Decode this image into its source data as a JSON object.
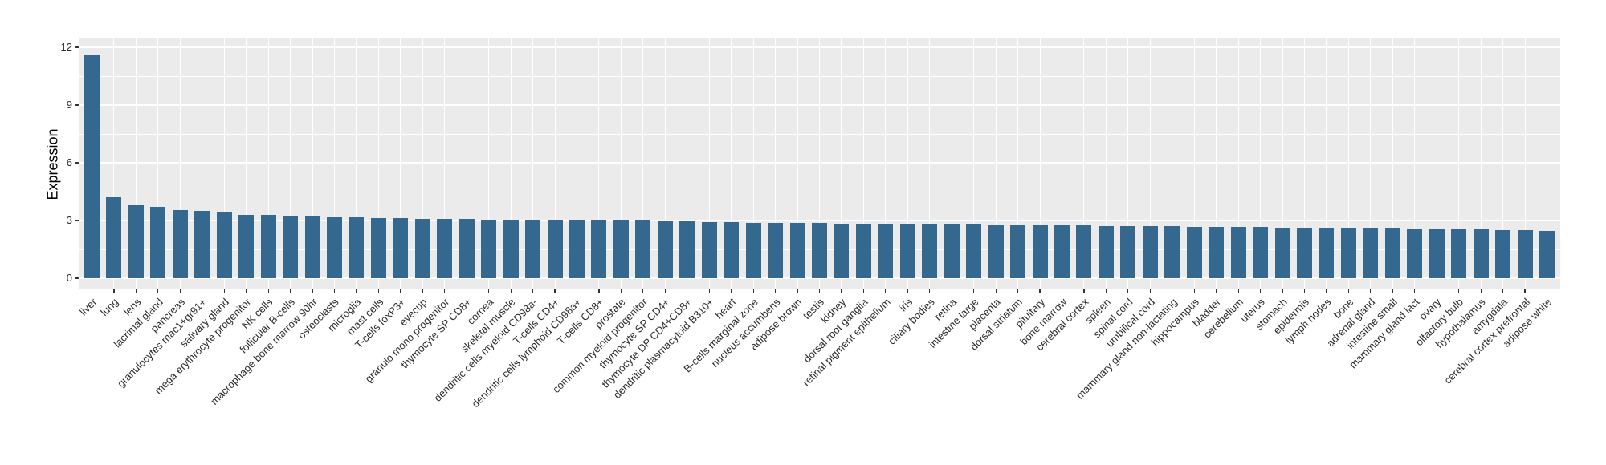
{
  "chart_data": {
    "type": "bar",
    "title": "",
    "xlabel": "",
    "ylabel": "Expression",
    "ylim": [
      0,
      12
    ],
    "yticks": [
      0,
      3,
      6,
      9,
      12
    ],
    "y_minor": [
      1.5,
      4.5,
      7.5,
      10.5
    ],
    "grid": true,
    "legend_position": "none",
    "bar_color": "#35688E",
    "panel_bg": "#EBEBEB",
    "grid_color": "#FFFFFF",
    "tick_color": "#333333",
    "label_rotation_deg": 45,
    "categories": [
      "liver",
      "lung",
      "lens",
      "lacrimal gland",
      "pancreas",
      "granulocytes mac1+gr91+",
      "salivary gland",
      "mega erythrocyte progenitor",
      "NK cells",
      "follicular B-cells",
      "macrophage bone marrow 90hr",
      "osteoclasts",
      "microglia",
      "mast cells",
      "T-cells foxP3+",
      "eyecup",
      "granulo mono progenitor",
      "thymocyte SP CD8+",
      "cornea",
      "skeletal muscle",
      "dendritic cells myeloid CD98a-",
      "T-cells CD4+",
      "dendritic cells lymphoid CD98a+",
      "T-cells CD8+",
      "prostate",
      "common myeloid progenitor",
      "thymocyte SP CD4+",
      "thymocyte DP CD4+CD8+",
      "dendritic plasmacytoid B310+",
      "heart",
      "B-cells marginal zone",
      "nucleus accumbens",
      "adipose brown",
      "testis",
      "kidney",
      "dorsal root ganglia",
      "retinal pigment epithelium",
      "iris",
      "ciliary bodies",
      "retina",
      "intestine large",
      "placenta",
      "dorsal striatum",
      "pituitary",
      "bone marrow",
      "cerebral cortex",
      "spleen",
      "spinal cord",
      "umbilical cord",
      "mammary gland non-lactating",
      "hippocampus",
      "bladder",
      "cerebellum",
      "uterus",
      "stomach",
      "epidermis",
      "lymph nodes",
      "bone",
      "adrenal gland",
      "intestine small",
      "mammary gland lact",
      "ovary",
      "olfactory bulb",
      "hypothalamus",
      "amygdala",
      "cerebral cortex prefrontal",
      "adipose white"
    ],
    "values": [
      11.6,
      4.2,
      3.8,
      3.7,
      3.56,
      3.51,
      3.4,
      3.3,
      3.28,
      3.25,
      3.2,
      3.17,
      3.15,
      3.13,
      3.11,
      3.1,
      3.08,
      3.07,
      3.06,
      3.05,
      3.04,
      3.03,
      3.02,
      3.0,
      2.99,
      2.98,
      2.96,
      2.94,
      2.92,
      2.9,
      2.89,
      2.88,
      2.87,
      2.86,
      2.85,
      2.84,
      2.82,
      2.81,
      2.8,
      2.79,
      2.78,
      2.77,
      2.76,
      2.75,
      2.74,
      2.73,
      2.72,
      2.71,
      2.7,
      2.69,
      2.68,
      2.67,
      2.66,
      2.65,
      2.63,
      2.62,
      2.6,
      2.59,
      2.58,
      2.57,
      2.56,
      2.55,
      2.54,
      2.53,
      2.52,
      2.48,
      2.45
    ]
  }
}
